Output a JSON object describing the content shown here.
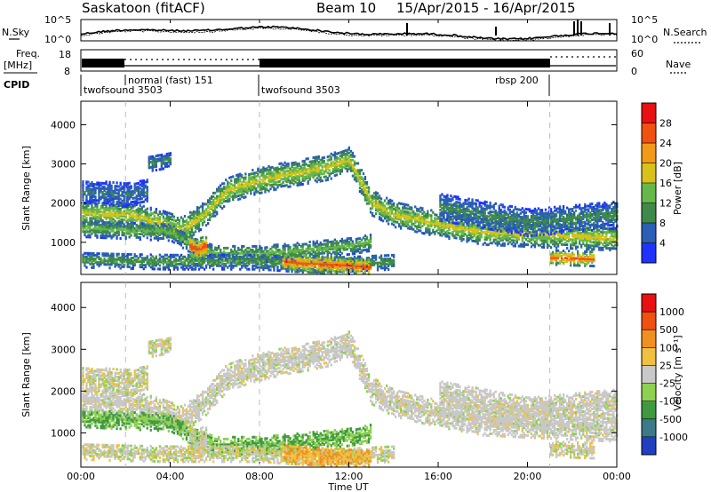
{
  "header": {
    "station": "Saskatoon (fitACF)",
    "beam": "Beam 10",
    "date_range": "15/Apr/2015 - 16/Apr/2015"
  },
  "noise_panel": {
    "left_label": "N.Sky",
    "right_label": "N.Search",
    "y_ticks_left": [
      "10^5",
      "10^0"
    ],
    "y_ticks_right": [
      "10^5",
      "10^0"
    ]
  },
  "freq_panel": {
    "left_label_1": "Freq.",
    "left_label_2": "[MHz]",
    "right_label": "Nave",
    "y_ticks_left": [
      "18",
      "8"
    ],
    "y_ticks_right": [
      "60",
      "0"
    ]
  },
  "cpid": {
    "label": "CPID",
    "entries": [
      {
        "name": "twofsound 3503",
        "start_hour": 0
      },
      {
        "name": "normal (fast) 151",
        "start_hour": 2
      },
      {
        "name": "twofsound 3503",
        "start_hour": 8
      },
      {
        "name": "rbsp 200",
        "start_hour": 21
      }
    ]
  },
  "chart_data": [
    {
      "type": "heatmap",
      "title": "Power",
      "ylabel": "Slant Range [km]",
      "xlabel": "",
      "xlim": [
        "00:00",
        "24:00"
      ],
      "ylim": [
        180,
        4600
      ],
      "y_ticks": [
        1000,
        2000,
        3000,
        4000
      ],
      "colorbar_label": "Power [dB]",
      "colorbar_ticks": [
        "4",
        "8",
        "12",
        "16",
        "20",
        "24",
        "28"
      ],
      "colorbar_colors": [
        "#1f33ff",
        "#2a5fb5",
        "#3e8a4a",
        "#66b84a",
        "#d8c21a",
        "#f09a18",
        "#f05010",
        "#e81010"
      ]
    },
    {
      "type": "heatmap",
      "title": "Velocity",
      "ylabel": "Slant Range [km]",
      "xlabel": "Time UT",
      "xlim": [
        "00:00",
        "24:00"
      ],
      "ylim": [
        180,
        4600
      ],
      "y_ticks": [
        1000,
        2000,
        3000,
        4000
      ],
      "x_ticks": [
        "00:00",
        "04:00",
        "08:00",
        "12:00",
        "16:00",
        "20:00",
        "00:00"
      ],
      "colorbar_label": "Velocity [m s⁻¹]",
      "colorbar_ticks": [
        "1000",
        "500",
        "100",
        "25",
        "-25",
        "-100",
        "-500",
        "-1000"
      ],
      "colorbar_colors": [
        "#2040c0",
        "#3c7a8a",
        "#3e9a40",
        "#8ed050",
        "#c8c8c8",
        "#f0c040",
        "#f09020",
        "#f05010",
        "#e81010"
      ]
    }
  ]
}
